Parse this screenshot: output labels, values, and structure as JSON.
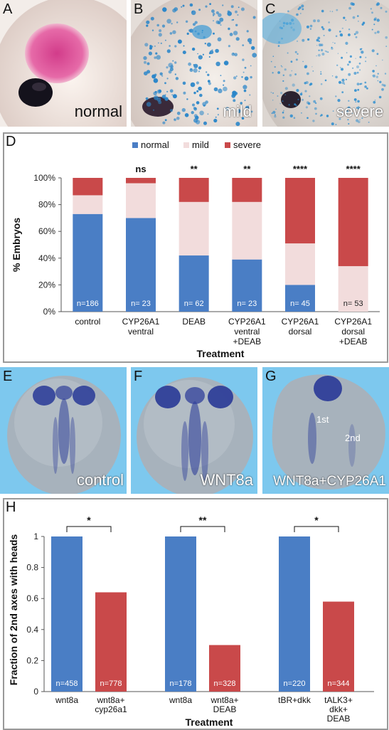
{
  "panels": {
    "A": {
      "letter": "A",
      "caption": "normal"
    },
    "B": {
      "letter": "B",
      "caption": "mild"
    },
    "C": {
      "letter": "C",
      "caption": "severe"
    },
    "D": {
      "letter": "D"
    },
    "E": {
      "letter": "E",
      "caption": "control"
    },
    "F": {
      "letter": "F",
      "caption": "WNT8a"
    },
    "G": {
      "letter": "G",
      "caption": "WNT8a+CYP26A1",
      "axis1": "1st",
      "axis2": "2nd"
    },
    "H": {
      "letter": "H"
    }
  },
  "colors": {
    "normal": "#4a7ec5",
    "mild": "#f2dcdc",
    "severe": "#c9494a",
    "sky": "#7dc8ee",
    "stain": "#2f3f99"
  },
  "chart_data": [
    {
      "type": "bar",
      "stacked": true,
      "categories": [
        [
          "control"
        ],
        [
          "CYP26A1",
          "ventral"
        ],
        [
          "DEAB"
        ],
        [
          "CYP26A1",
          "ventral",
          "+DEAB"
        ],
        [
          "CYP26A1",
          "dorsal"
        ],
        [
          "CYP26A1",
          "dorsal",
          "+DEAB"
        ]
      ],
      "series": [
        {
          "name": "normal",
          "values": [
            73,
            70,
            42,
            39,
            20,
            0
          ]
        },
        {
          "name": "mild",
          "values": [
            14,
            26,
            40,
            43,
            31,
            34
          ]
        },
        {
          "name": "severe",
          "values": [
            13,
            4,
            18,
            18,
            49,
            66
          ]
        }
      ],
      "n_labels": [
        "n=186",
        "n= 23",
        "n= 62",
        "n= 23",
        "n= 45",
        "n= 53"
      ],
      "significance": [
        "",
        "ns",
        "**",
        "**",
        "****",
        "****"
      ],
      "ylabel": "% Embryos",
      "xlabel": "Treatment",
      "yticks": [
        "0%",
        "20%",
        "40%",
        "60%",
        "80%",
        "100%"
      ],
      "ylim": [
        0,
        100
      ],
      "legend_position": "top"
    },
    {
      "type": "bar",
      "categories": [
        [
          "wnt8a"
        ],
        [
          "wnt8a+",
          "cyp26a1"
        ],
        [
          "wnt8a"
        ],
        [
          "wnt8a+",
          "DEAB"
        ],
        [
          "tBR+dkk"
        ],
        [
          "tALK3+",
          "dkk+",
          "DEAB"
        ]
      ],
      "values": [
        1,
        0.64,
        1,
        0.3,
        1,
        0.58
      ],
      "bar_colors": [
        "normal",
        "severe",
        "normal",
        "severe",
        "normal",
        "severe"
      ],
      "n_labels": [
        "n=458",
        "n=778",
        "n=178",
        "n=328",
        "n=220",
        "n=344"
      ],
      "comparisons": [
        "*",
        "**",
        "*"
      ],
      "ylabel": "Fraction of 2nd axes with heads",
      "xlabel": "Treatment",
      "yticks": [
        "0",
        "0.2",
        "0.4",
        "0.6",
        "0.8",
        "1"
      ],
      "ylim": [
        0,
        1
      ]
    }
  ]
}
